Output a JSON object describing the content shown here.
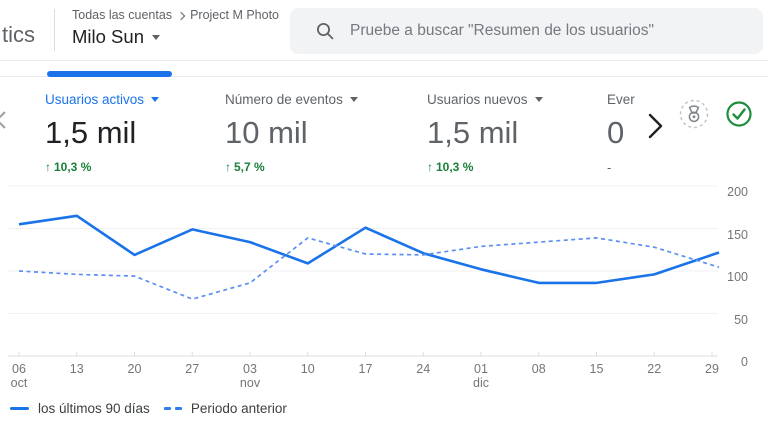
{
  "header": {
    "logo_text": "tics",
    "breadcrumb": {
      "root": "Todas las cuentas",
      "current": "Project M Photo"
    },
    "account_name": "Milo Sun",
    "search": {
      "placeholder": "Pruebe a buscar \"Resumen de los usuarios\"",
      "icon": "magnifier"
    }
  },
  "metrics": {
    "cards": [
      {
        "label": "Usuarios activos",
        "value": "1,5 mil",
        "delta_arrow": "↑",
        "delta": "10,3 %",
        "active": true
      },
      {
        "label": "Número de eventos",
        "value": "10 mil",
        "delta_arrow": "↑",
        "delta": "5,7 %"
      },
      {
        "label": "Usuarios nuevos",
        "value": "1,5 mil",
        "delta_arrow": "↑",
        "delta": "10,3 %"
      },
      {
        "label": "Ever",
        "value": "0",
        "delta": "-"
      }
    ],
    "icons": {
      "prev": "chevron-left",
      "next": "chevron-right",
      "badge": "medal",
      "status": "check-circle"
    }
  },
  "colors": {
    "accent": "#1a73e8",
    "positive": "#188038",
    "line_solid": "#1a73e8",
    "line_dashed": "#5b8ff2",
    "grid": "#f0f1f2",
    "axis": "#dadce0"
  },
  "chart_data": {
    "type": "line",
    "categories": [
      "06 oct",
      "13",
      "20",
      "27",
      "03 nov",
      "10",
      "17",
      "24",
      "01 dic",
      "08",
      "15",
      "22",
      "29"
    ],
    "series": [
      {
        "name": "los últimos 90 días",
        "style": "solid",
        "values": [
          155,
          165,
          119,
          149,
          134,
          109,
          151,
          121,
          102,
          86,
          86,
          96,
          119
        ]
      },
      {
        "name": "Periodo anterior",
        "style": "dashed",
        "values": [
          100,
          96,
          94,
          67,
          86,
          139,
          120,
          119,
          129,
          134,
          139,
          128,
          107
        ]
      }
    ],
    "ylim": [
      0,
      200
    ],
    "yticks": [
      0,
      50,
      100,
      150,
      200
    ],
    "grid": true,
    "legend_position": "bottom",
    "title": "",
    "xlabel": "",
    "ylabel": ""
  }
}
